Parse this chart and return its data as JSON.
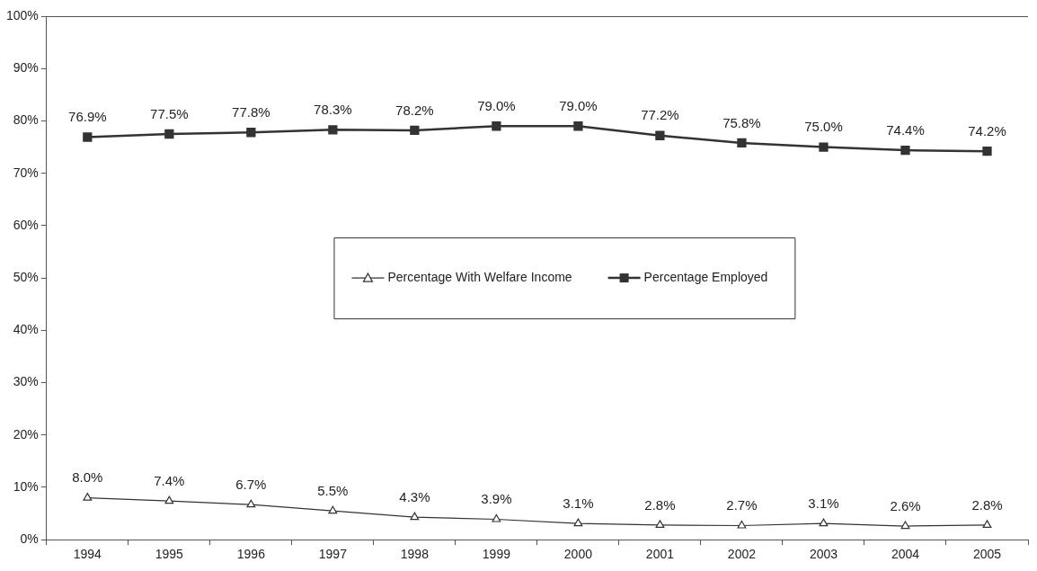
{
  "chart_data": {
    "type": "line",
    "categories": [
      "1994",
      "1995",
      "1996",
      "1997",
      "1998",
      "1999",
      "2000",
      "2001",
      "2002",
      "2003",
      "2004",
      "2005"
    ],
    "series": [
      {
        "name": "Percentage With Welfare Income",
        "color": "#333333",
        "marker": "triangle",
        "values": [
          8.0,
          7.4,
          6.7,
          5.5,
          4.3,
          3.9,
          3.1,
          2.8,
          2.7,
          3.1,
          2.6,
          2.8
        ],
        "value_labels": [
          "8.0%",
          "7.4%",
          "6.7%",
          "5.5%",
          "4.3%",
          "3.9%",
          "3.1%",
          "2.8%",
          "2.7%",
          "3.1%",
          "2.6%",
          "2.8%"
        ]
      },
      {
        "name": "Percentage Employed",
        "color": "#333333",
        "marker": "square",
        "values": [
          76.9,
          77.5,
          77.8,
          78.3,
          78.2,
          79.0,
          79.0,
          77.2,
          75.8,
          75.0,
          74.4,
          74.2
        ],
        "value_labels": [
          "76.9%",
          "77.5%",
          "77.8%",
          "78.3%",
          "78.2%",
          "79.0%",
          "79.0%",
          "77.2%",
          "75.8%",
          "75.0%",
          "74.4%",
          "74.2%"
        ]
      }
    ],
    "ylim": [
      0,
      100
    ],
    "yticks": [
      {
        "value": 0,
        "label": "0%"
      },
      {
        "value": 10,
        "label": "10%"
      },
      {
        "value": 20,
        "label": "20%"
      },
      {
        "value": 30,
        "label": "30%"
      },
      {
        "value": 40,
        "label": "40%"
      },
      {
        "value": 50,
        "label": "50%"
      },
      {
        "value": 60,
        "label": "60%"
      },
      {
        "value": 70,
        "label": "70%"
      },
      {
        "value": 80,
        "label": "80%"
      },
      {
        "value": 90,
        "label": "90%"
      },
      {
        "value": 100,
        "label": "100%"
      }
    ],
    "grid": false,
    "legend": "center"
  }
}
